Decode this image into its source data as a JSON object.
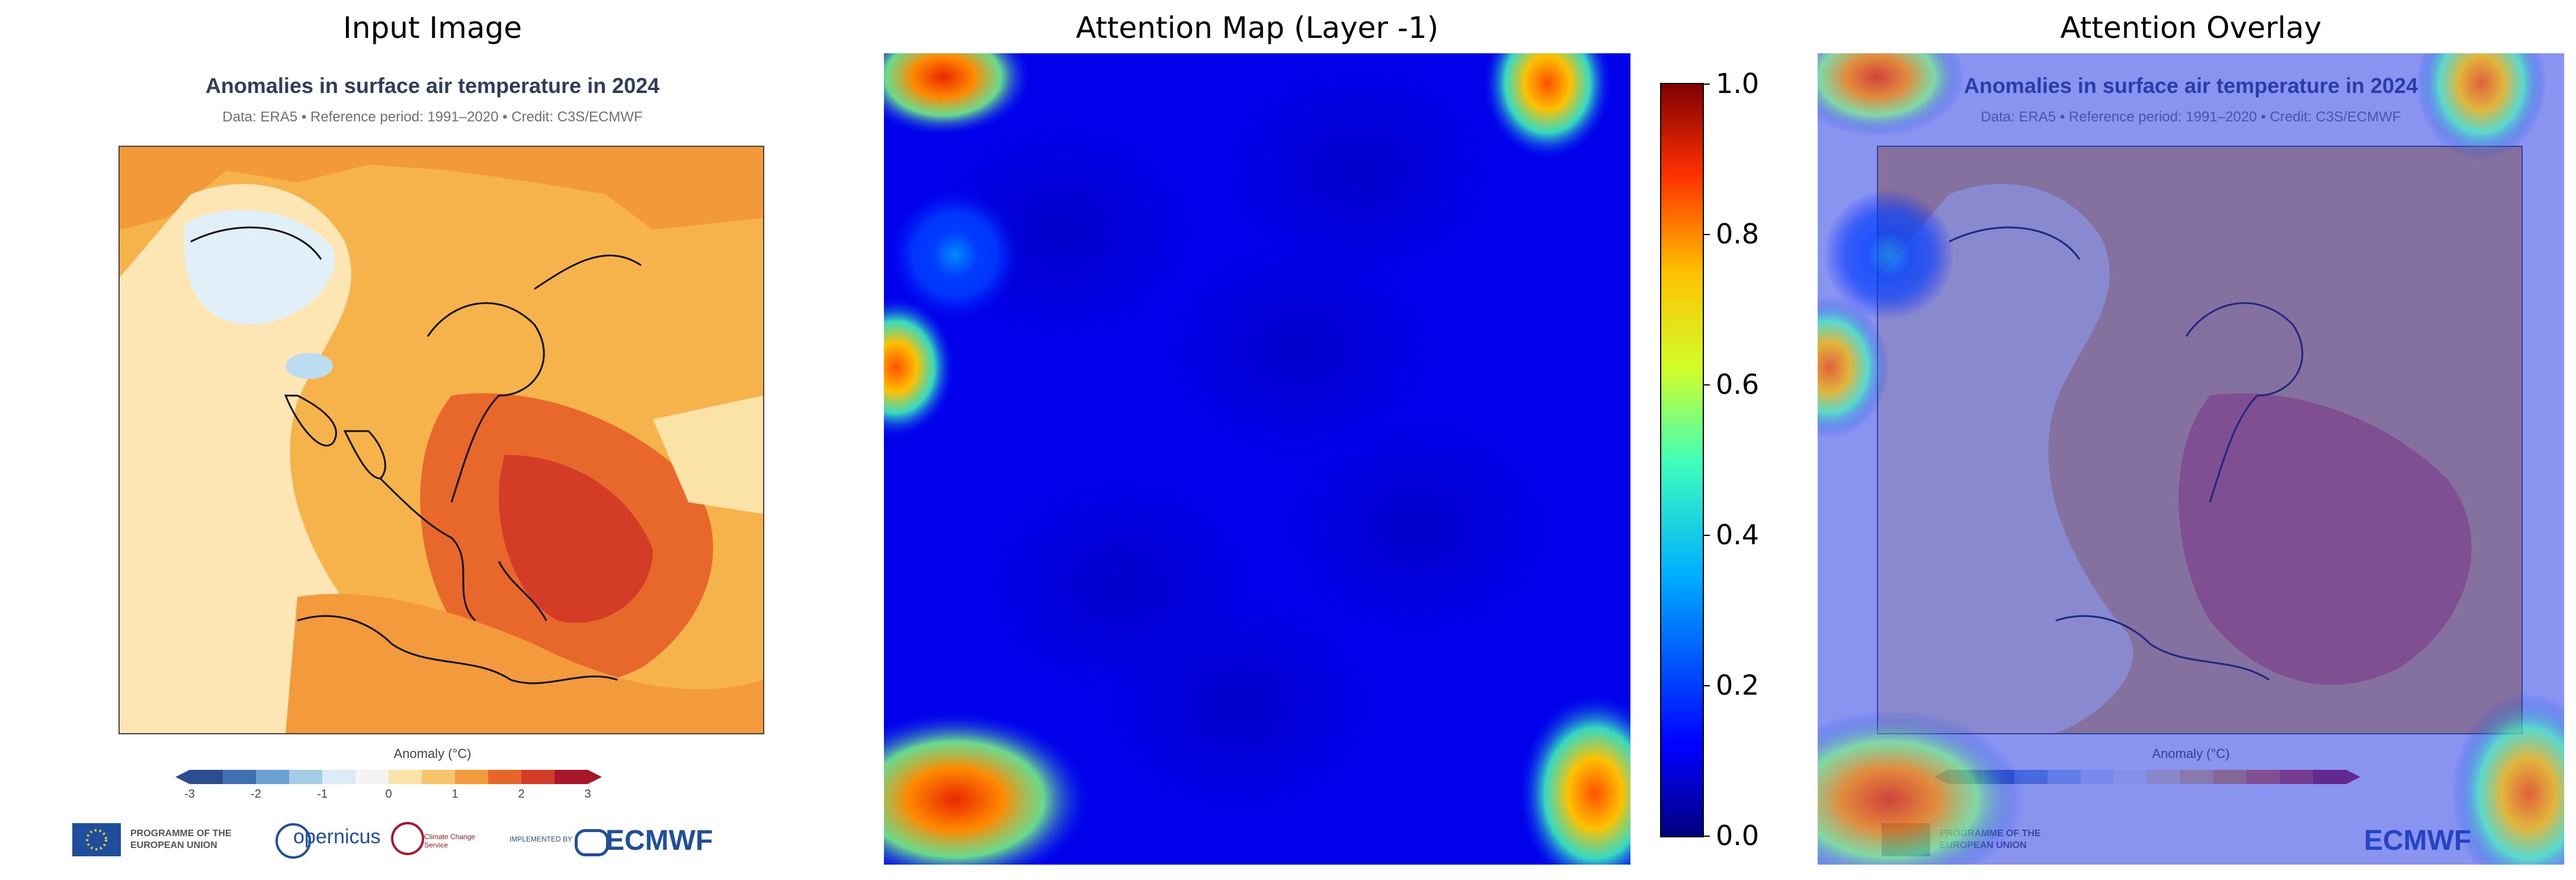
{
  "panels": {
    "input_title": "Input Image",
    "attention_title": "Attention Map (Layer -1)",
    "overlay_title": "Attention Overlay"
  },
  "map": {
    "title": "Anomalies in surface air temperature in 2024",
    "subtitle": "Data: ERA5 • Reference period: 1991–2020 • Credit: C3S/ECMWF",
    "colorbar_caption": "Anomaly (°C)",
    "colorbar_ticks": [
      "-3",
      "-2",
      "-1",
      "0",
      "1",
      "2",
      "3"
    ],
    "colorbar_colors": [
      "#2b4d8f",
      "#3f6fb1",
      "#6aa0d2",
      "#a6cde8",
      "#d9ecf7",
      "#f4f4f4",
      "#fbe3a7",
      "#f7c46c",
      "#f39b3c",
      "#e8662a",
      "#d33d27",
      "#a8162a"
    ],
    "logos": {
      "eu": "PROGRAMME OF THE EUROPEAN UNION",
      "copernicus": "opernicus",
      "c3s": "Climate Change Service",
      "implemented": "IMPLEMENTED BY",
      "ecmwf": "ECMWF"
    }
  },
  "chart_data": {
    "type": "heatmap",
    "title": "Attention Map (Layer -1)",
    "colormap": "jet",
    "colorbar": {
      "range": [
        0.0,
        1.0
      ],
      "ticks": [
        "0.0",
        "0.2",
        "0.4",
        "0.6",
        "0.8",
        "1.0"
      ]
    },
    "hotspots": [
      {
        "region": "top-left corner",
        "value": 0.9
      },
      {
        "region": "top-right corner",
        "value": 0.85
      },
      {
        "region": "left edge middle",
        "value": 0.85
      },
      {
        "region": "bottom-left corner",
        "value": 0.9
      },
      {
        "region": "bottom-right corner",
        "value": 0.85
      },
      {
        "region": "upper-left interior",
        "value": 0.3
      }
    ],
    "background_value": 0.1
  }
}
